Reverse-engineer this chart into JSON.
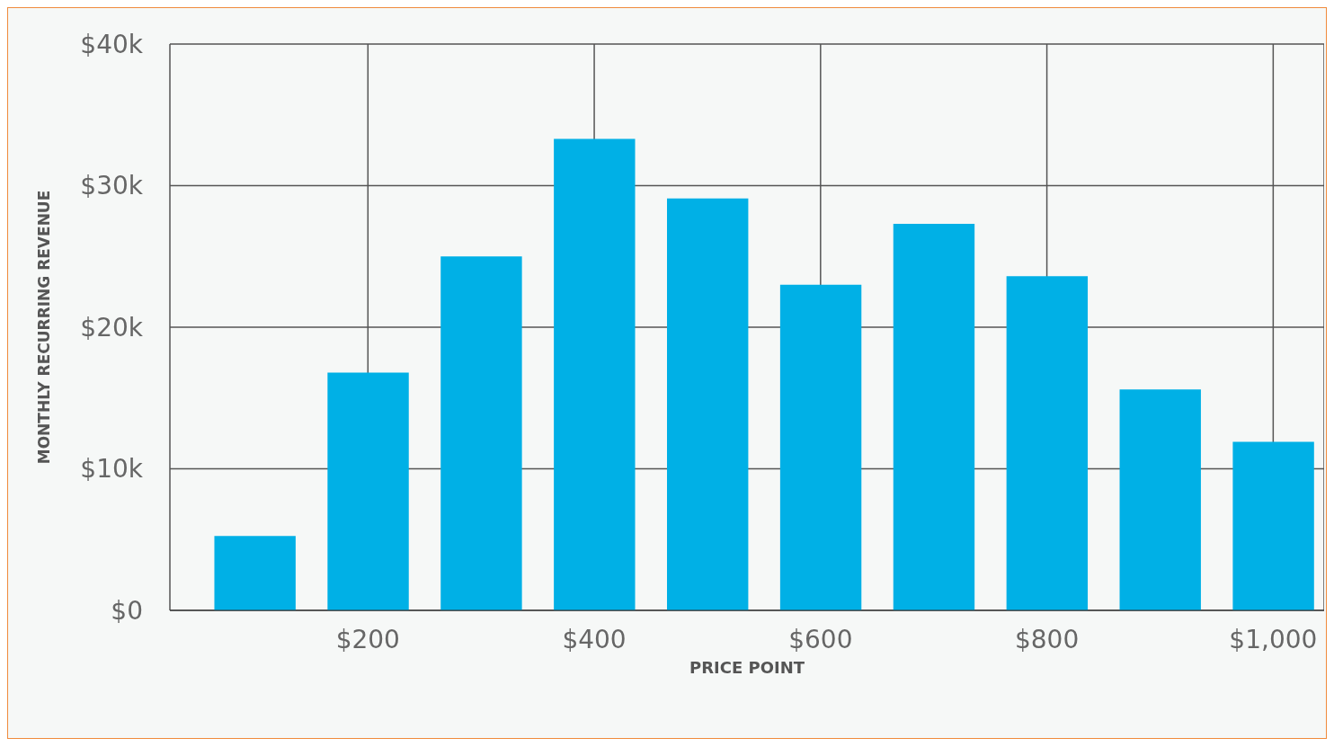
{
  "chart_data": {
    "type": "bar",
    "xlabel": "PRICE POINT",
    "ylabel": "MONTHLY RECURRING REVENUE",
    "x": [
      100,
      200,
      300,
      400,
      500,
      600,
      700,
      800,
      900,
      1000
    ],
    "values": [
      5250,
      16800,
      25000,
      33300,
      29100,
      23000,
      27300,
      23600,
      15600,
      11900
    ],
    "color": "#00b0e6",
    "xlim": [
      25,
      1045
    ],
    "xticks": [
      {
        "value": 200,
        "label": "$200"
      },
      {
        "value": 400,
        "label": "$400"
      },
      {
        "value": 600,
        "label": "$600"
      },
      {
        "value": 800,
        "label": "$800"
      },
      {
        "value": 1000,
        "label": "$1,000"
      }
    ],
    "ylim": [
      0,
      40000
    ],
    "yticks": [
      {
        "value": 0,
        "label": "$0"
      },
      {
        "value": 10000,
        "label": "$10k"
      },
      {
        "value": 20000,
        "label": "$20k"
      },
      {
        "value": 30000,
        "label": "$30k"
      },
      {
        "value": 40000,
        "label": "$40k"
      }
    ],
    "grid": true
  }
}
